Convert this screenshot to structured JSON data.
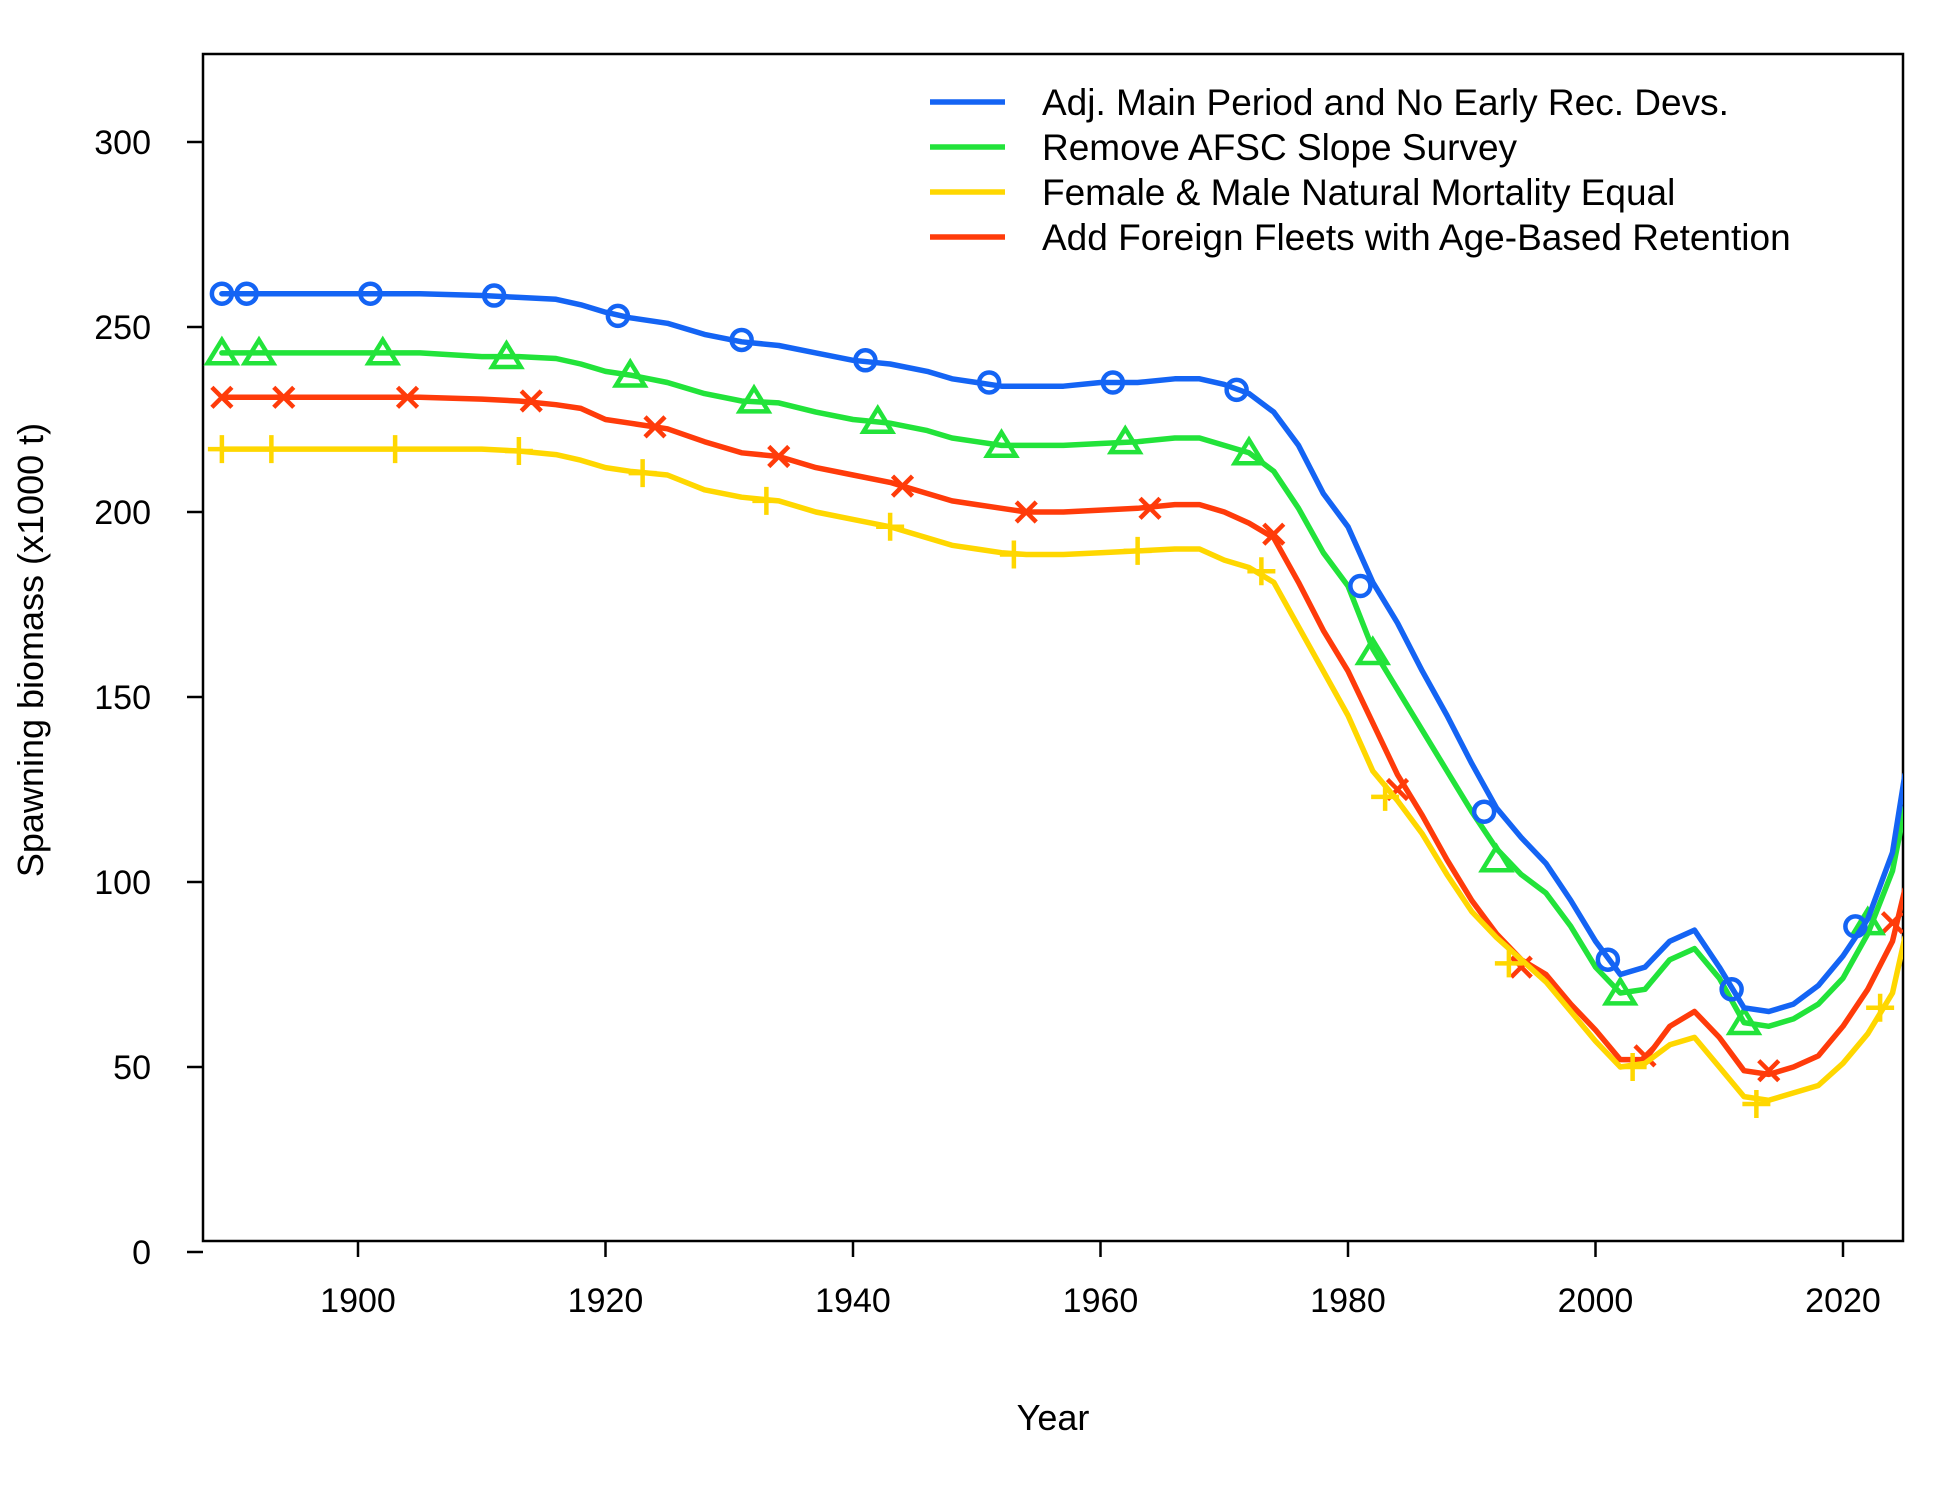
{
  "chart_data": {
    "type": "line",
    "xlabel": "Year",
    "ylabel": "Spawning biomass (x1000 t)",
    "xlim": [
      1887,
      2025
    ],
    "ylim": [
      0,
      320
    ],
    "x_ticks": [
      1900,
      1920,
      1940,
      1960,
      1980,
      2000,
      2020
    ],
    "y_ticks": [
      0,
      50,
      100,
      150,
      200,
      250,
      300
    ],
    "grid": false,
    "legend_position": "top-right",
    "series": [
      {
        "name": "Adj. Main Period and No Early Rec. Devs.",
        "color": "#1464F4",
        "marker": "circle",
        "x": [
          1889,
          1891,
          1895,
          1900,
          1905,
          1910,
          1913,
          1916,
          1918,
          1920,
          1922,
          1925,
          1928,
          1931,
          1934,
          1937,
          1940,
          1943,
          1946,
          1948,
          1950,
          1952,
          1954,
          1957,
          1960,
          1963,
          1966,
          1968,
          1970,
          1972,
          1974,
          1976,
          1978,
          1980,
          1982,
          1984,
          1986,
          1988,
          1990,
          1992,
          1994,
          1996,
          1998,
          2000,
          2002,
          2004,
          2006,
          2008,
          2010,
          2012,
          2014,
          2016,
          2018,
          2020,
          2022,
          2024,
          2025
        ],
        "y": [
          259,
          259,
          259,
          259,
          259,
          258.5,
          258,
          257.5,
          256,
          254,
          252.5,
          251,
          248,
          246,
          245,
          243,
          241,
          240,
          238,
          236,
          235,
          234,
          234,
          234,
          235,
          235,
          236,
          236,
          234.5,
          232,
          227,
          218,
          205,
          196,
          181,
          170,
          157,
          145,
          132,
          120,
          112,
          105,
          95,
          84,
          75,
          77,
          84,
          87,
          77,
          66,
          65,
          67,
          72,
          80,
          90,
          108,
          129
        ],
        "marker_x": [
          1889,
          1891,
          1901,
          1911,
          1921,
          1931,
          1941,
          1951,
          1961,
          1971,
          1981,
          1991,
          2001,
          2011,
          2021
        ],
        "marker_y": [
          259,
          259,
          259,
          258.5,
          253,
          246.5,
          241,
          235,
          235,
          233,
          180,
          119,
          79,
          71,
          88
        ]
      },
      {
        "name": "Remove AFSC Slope Survey",
        "color": "#22E33A",
        "marker": "triangle",
        "x": [
          1889,
          1892,
          1895,
          1900,
          1905,
          1910,
          1913,
          1916,
          1918,
          1920,
          1922,
          1925,
          1928,
          1931,
          1934,
          1937,
          1940,
          1943,
          1946,
          1948,
          1950,
          1952,
          1954,
          1957,
          1960,
          1963,
          1966,
          1968,
          1970,
          1972,
          1974,
          1976,
          1978,
          1980,
          1982,
          1984,
          1986,
          1988,
          1990,
          1992,
          1994,
          1996,
          1998,
          2000,
          2002,
          2004,
          2006,
          2008,
          2010,
          2012,
          2014,
          2016,
          2018,
          2020,
          2022,
          2024,
          2025
        ],
        "y": [
          243,
          243,
          243,
          243,
          243,
          242,
          242,
          241.5,
          240,
          238,
          237,
          235,
          232,
          230,
          229.5,
          227,
          225,
          224,
          222,
          220,
          219,
          218,
          218,
          218,
          218.5,
          219,
          220,
          220,
          218,
          216,
          211,
          201,
          189,
          180,
          163,
          152,
          141,
          130,
          119,
          109,
          102,
          97,
          88,
          77,
          70,
          71,
          79,
          82,
          74,
          62,
          61,
          63,
          67,
          74,
          86,
          103,
          120
        ],
        "marker_x": [
          1889,
          1892,
          1902,
          1912,
          1922,
          1932,
          1942,
          1952,
          1962,
          1972,
          1982,
          1992,
          2002,
          2012,
          2022
        ],
        "marker_y": [
          243,
          243,
          243,
          242,
          237,
          230,
          224.5,
          218,
          219,
          216,
          162,
          106,
          70,
          62,
          89
        ]
      },
      {
        "name": "Female & Male Natural Mortality Equal",
        "color": "#FFD700",
        "marker": "plus",
        "x": [
          1889,
          1893,
          1895,
          1900,
          1905,
          1910,
          1913,
          1916,
          1918,
          1920,
          1922,
          1925,
          1928,
          1931,
          1934,
          1937,
          1940,
          1943,
          1946,
          1948,
          1950,
          1952,
          1954,
          1957,
          1960,
          1963,
          1966,
          1968,
          1970,
          1972,
          1974,
          1976,
          1978,
          1980,
          1982,
          1984,
          1986,
          1988,
          1990,
          1992,
          1994,
          1996,
          1998,
          2000,
          2002,
          2004,
          2006,
          2008,
          2010,
          2012,
          2014,
          2016,
          2018,
          2020,
          2022,
          2024,
          2025
        ],
        "y": [
          217,
          217,
          217,
          217,
          217,
          217,
          216.5,
          215.5,
          214,
          212,
          211,
          210,
          206,
          204,
          203,
          200,
          198,
          196,
          193,
          191,
          190,
          189,
          188.5,
          188.5,
          189,
          189.5,
          190,
          190,
          187,
          185,
          181,
          169,
          157,
          145,
          130,
          122,
          113,
          102,
          92,
          85,
          79,
          73,
          65,
          57,
          50,
          51,
          56,
          58,
          50,
          42,
          41,
          43,
          45,
          51,
          59,
          70,
          85
        ],
        "marker_x": [
          1889,
          1893,
          1903,
          1913,
          1923,
          1933,
          1943,
          1953,
          1963,
          1973,
          1983,
          1993,
          2003,
          2013,
          2023
        ],
        "marker_y": [
          217,
          217,
          217,
          216.5,
          210.5,
          203,
          196,
          188.5,
          189.5,
          184,
          123,
          78,
          50,
          40,
          66
        ]
      },
      {
        "name": "Add Foreign Fleets with Age-Based Retention",
        "color": "#FF3B0A",
        "marker": "x",
        "x": [
          1889,
          1894,
          1895,
          1900,
          1905,
          1910,
          1913,
          1916,
          1918,
          1920,
          1922,
          1925,
          1928,
          1931,
          1934,
          1937,
          1940,
          1943,
          1946,
          1948,
          1950,
          1952,
          1954,
          1957,
          1960,
          1963,
          1966,
          1968,
          1970,
          1972,
          1974,
          1976,
          1978,
          1980,
          1982,
          1984,
          1986,
          1988,
          1990,
          1992,
          1994,
          1996,
          1998,
          2000,
          2002,
          2004,
          2006,
          2008,
          2010,
          2012,
          2014,
          2016,
          2018,
          2020,
          2022,
          2024,
          2025
        ],
        "y": [
          231,
          231,
          231,
          231,
          231,
          230.5,
          230,
          229,
          228,
          225,
          224,
          222.5,
          219,
          216,
          215,
          212,
          210,
          208,
          205,
          203,
          202,
          201,
          200,
          200,
          200.5,
          201,
          202,
          202,
          200,
          197,
          193,
          181,
          168,
          157,
          143,
          129,
          118,
          106,
          95,
          86,
          79,
          75,
          67,
          60,
          52,
          52,
          61,
          65,
          58,
          49,
          48,
          50,
          53,
          61,
          71,
          84,
          98
        ],
        "marker_x": [
          1889,
          1894,
          1904,
          1914,
          1924,
          1934,
          1944,
          1954,
          1964,
          1974,
          1984,
          1994,
          2004,
          2014,
          2024
        ],
        "marker_y": [
          231,
          231,
          231,
          230,
          223,
          215,
          207,
          200,
          201,
          194,
          125,
          77,
          53,
          49,
          89
        ]
      }
    ]
  }
}
